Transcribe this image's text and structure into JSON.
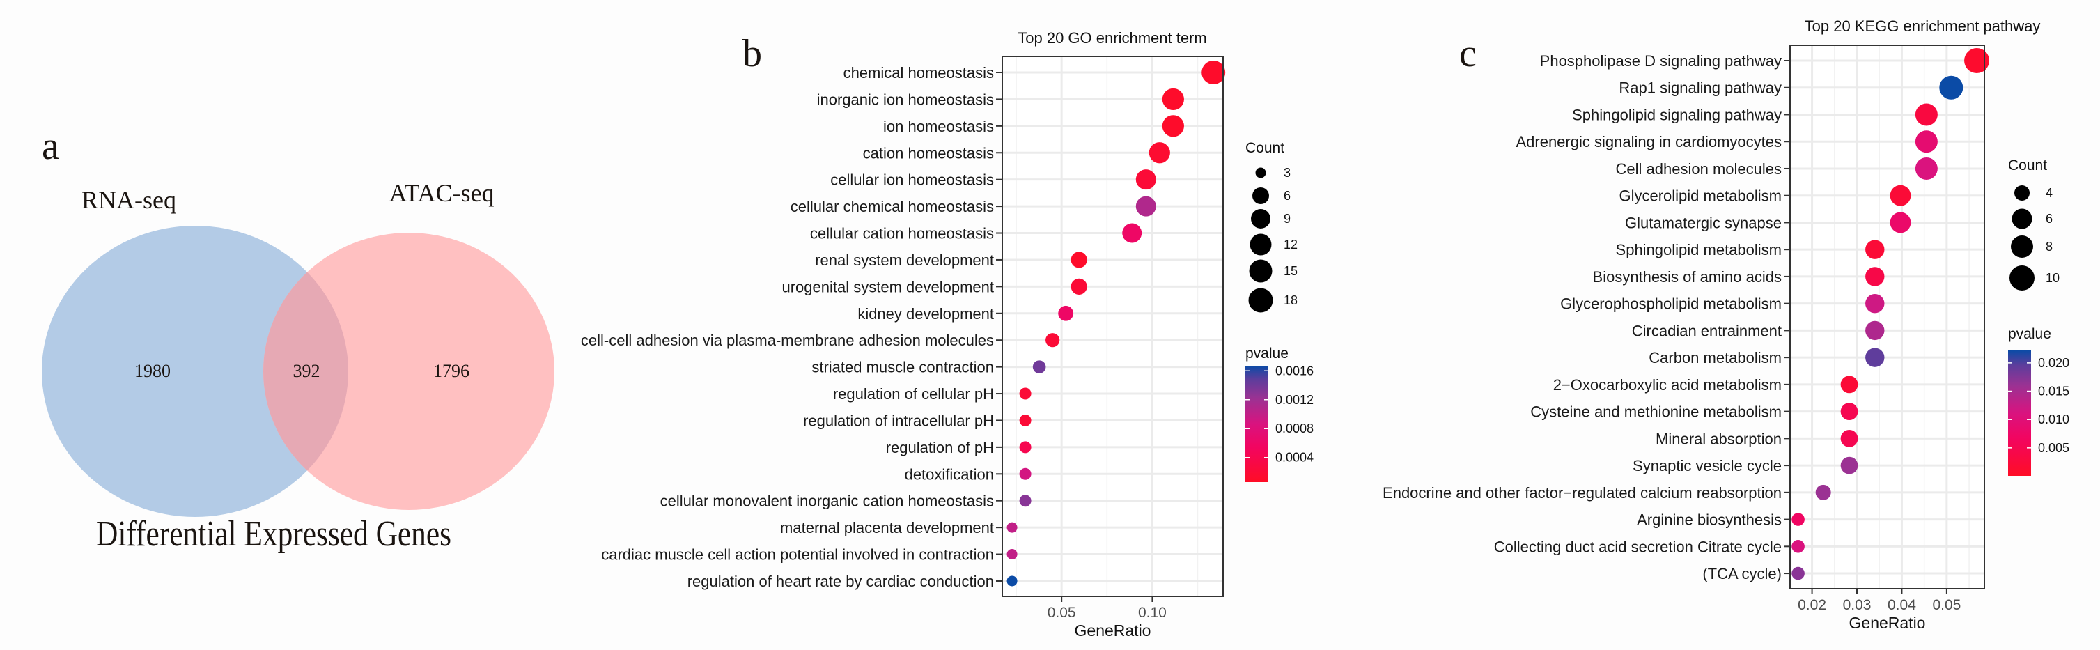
{
  "panels": {
    "a": "a",
    "b": "b",
    "c": "c"
  },
  "chart_data": [
    {
      "type": "venn",
      "title": "Differential Expressed Genes",
      "sets": [
        {
          "name": "RNA-seq",
          "only": "1980",
          "color": "#b3cbe6"
        },
        {
          "name": "ATAC-seq",
          "only": "1796",
          "color": "#ffc0c1"
        }
      ],
      "intersection": "392",
      "overlap_color": "#e6a9b4"
    },
    {
      "type": "scatter",
      "title": "Top 20 GO enrichment term",
      "xlabel": "GeneRatio",
      "ylabel": "",
      "xlim": [
        0.0173,
        0.139
      ],
      "xticks": [
        "0.05",
        "0.10"
      ],
      "xtick_values": [
        0.05,
        0.1
      ],
      "grid": true,
      "legend_placement": "right",
      "size_legend": {
        "title": "Count",
        "values": [
          "3",
          "6",
          "9",
          "12",
          "15",
          "18"
        ]
      },
      "color_legend": {
        "title": "pvalue",
        "ticks": [
          "0.0016",
          "0.0012",
          "0.0008",
          "0.0004"
        ],
        "tick_values": [
          0.0016,
          0.0012,
          0.0008,
          0.0004
        ],
        "range": [
          6e-05,
          0.00167
        ],
        "low_color": "#ff0d26",
        "high_color": "#0b4ba6"
      },
      "terms": [
        {
          "label": "chemical homeostasis",
          "x": 0.1337,
          "count": 18,
          "p": 0.0001
        },
        {
          "label": "inorganic ion homeostasis",
          "x": 0.1115,
          "count": 15,
          "p": 0.0001
        },
        {
          "label": "ion homeostasis",
          "x": 0.1115,
          "count": 15,
          "p": 0.0001
        },
        {
          "label": "cation homeostasis",
          "x": 0.104,
          "count": 14,
          "p": 0.00015
        },
        {
          "label": "cellular ion homeostasis",
          "x": 0.0965,
          "count": 13,
          "p": 0.0002
        },
        {
          "label": "cellular chemical homeostasis",
          "x": 0.0965,
          "count": 13,
          "p": 0.0011
        },
        {
          "label": "cellular cation homeostasis",
          "x": 0.0888,
          "count": 12,
          "p": 0.0006
        },
        {
          "label": "renal system development",
          "x": 0.0596,
          "count": 8,
          "p": 0.0001
        },
        {
          "label": "urogenital system development",
          "x": 0.0596,
          "count": 8,
          "p": 0.0002
        },
        {
          "label": "kidney development",
          "x": 0.0523,
          "count": 7,
          "p": 0.0006
        },
        {
          "label": "cell-cell adhesion via plasma-membrane adhesion molecules",
          "x": 0.045,
          "count": 6,
          "p": 0.0002
        },
        {
          "label": "striated muscle contraction",
          "x": 0.0377,
          "count": 5,
          "p": 0.0014
        },
        {
          "label": "regulation of cellular pH",
          "x": 0.03,
          "count": 4,
          "p": 0.0002
        },
        {
          "label": "regulation of intracellular pH",
          "x": 0.03,
          "count": 4,
          "p": 0.0002
        },
        {
          "label": "regulation of pH",
          "x": 0.03,
          "count": 4,
          "p": 0.0004
        },
        {
          "label": "detoxification",
          "x": 0.03,
          "count": 4,
          "p": 0.0009
        },
        {
          "label": "cellular monovalent inorganic cation homeostasis",
          "x": 0.03,
          "count": 4,
          "p": 0.0013
        },
        {
          "label": "maternal placenta development",
          "x": 0.0227,
          "count": 3,
          "p": 0.001
        },
        {
          "label": "cardiac muscle cell action potential involved in contraction",
          "x": 0.0227,
          "count": 3,
          "p": 0.001
        },
        {
          "label": "regulation of heart rate by cardiac conduction",
          "x": 0.0227,
          "count": 3,
          "p": 0.0017
        }
      ]
    },
    {
      "type": "scatter",
      "title": "Top 20 KEGG enrichment pathway",
      "xlabel": "GeneRatio",
      "ylabel": "",
      "xlim": [
        0.0151,
        0.0584
      ],
      "xticks": [
        "0.02",
        "0.03",
        "0.04",
        "0.05"
      ],
      "xtick_values": [
        0.02,
        0.03,
        0.04,
        0.05
      ],
      "grid": true,
      "legend_placement": "right",
      "size_legend": {
        "title": "Count",
        "values": [
          "4",
          "6",
          "8",
          "10"
        ]
      },
      "color_legend": {
        "title": "pvalue",
        "ticks": [
          "0.020",
          "0.015",
          "0.010",
          "0.005"
        ],
        "tick_values": [
          0.02,
          0.015,
          0.01,
          0.005
        ],
        "range": [
          6e-05,
          0.0222
        ],
        "low_color": "#ff0d26",
        "high_color": "#0b4ba6"
      },
      "terms": [
        {
          "label": "Phospholipase D signaling pathway",
          "x": 0.0567,
          "count": 10,
          "p": 0.001
        },
        {
          "label": "Rap1 signaling pathway",
          "x": 0.051,
          "count": 9,
          "p": 0.0222
        },
        {
          "label": "Sphingolipid signaling pathway",
          "x": 0.0455,
          "count": 8,
          "p": 0.003
        },
        {
          "label": "Adrenergic signaling in cardiomyocytes",
          "x": 0.0455,
          "count": 8,
          "p": 0.009
        },
        {
          "label": "Cell adhesion molecules",
          "x": 0.0455,
          "count": 8,
          "p": 0.011
        },
        {
          "label": "Glycerolipid metabolism",
          "x": 0.0397,
          "count": 7,
          "p": 0.002
        },
        {
          "label": "Glutamatergic synapse",
          "x": 0.0397,
          "count": 7,
          "p": 0.008
        },
        {
          "label": "Sphingolipid metabolism",
          "x": 0.034,
          "count": 6,
          "p": 0.002
        },
        {
          "label": "Biosynthesis of amino acids",
          "x": 0.034,
          "count": 6,
          "p": 0.004
        },
        {
          "label": "Glycerophospholipid metabolism",
          "x": 0.034,
          "count": 6,
          "p": 0.012
        },
        {
          "label": "Circadian entrainment",
          "x": 0.034,
          "count": 6,
          "p": 0.0145
        },
        {
          "label": "Carbon metabolism",
          "x": 0.034,
          "count": 6,
          "p": 0.0195
        },
        {
          "label": "2−Oxocarboxylic acid metabolism",
          "x": 0.0283,
          "count": 5,
          "p": 0.002
        },
        {
          "label": "Cysteine and methionine metabolism",
          "x": 0.0283,
          "count": 5,
          "p": 0.005
        },
        {
          "label": "Mineral absorption",
          "x": 0.0283,
          "count": 5,
          "p": 0.005
        },
        {
          "label": "Synaptic vesicle cycle",
          "x": 0.0283,
          "count": 5,
          "p": 0.016
        },
        {
          "label": "Endocrine and other factor−regulated calcium reabsorption",
          "x": 0.0225,
          "count": 4,
          "p": 0.016
        },
        {
          "label": "Arginine biosynthesis",
          "x": 0.0169,
          "count": 3,
          "p": 0.007
        },
        {
          "label": "Collecting duct acid secretion  Citrate cycle",
          "x": 0.0169,
          "count": 3,
          "p": 0.011
        },
        {
          "label": "(TCA cycle)",
          "x": 0.0169,
          "count": 3,
          "p": 0.017
        }
      ]
    }
  ]
}
